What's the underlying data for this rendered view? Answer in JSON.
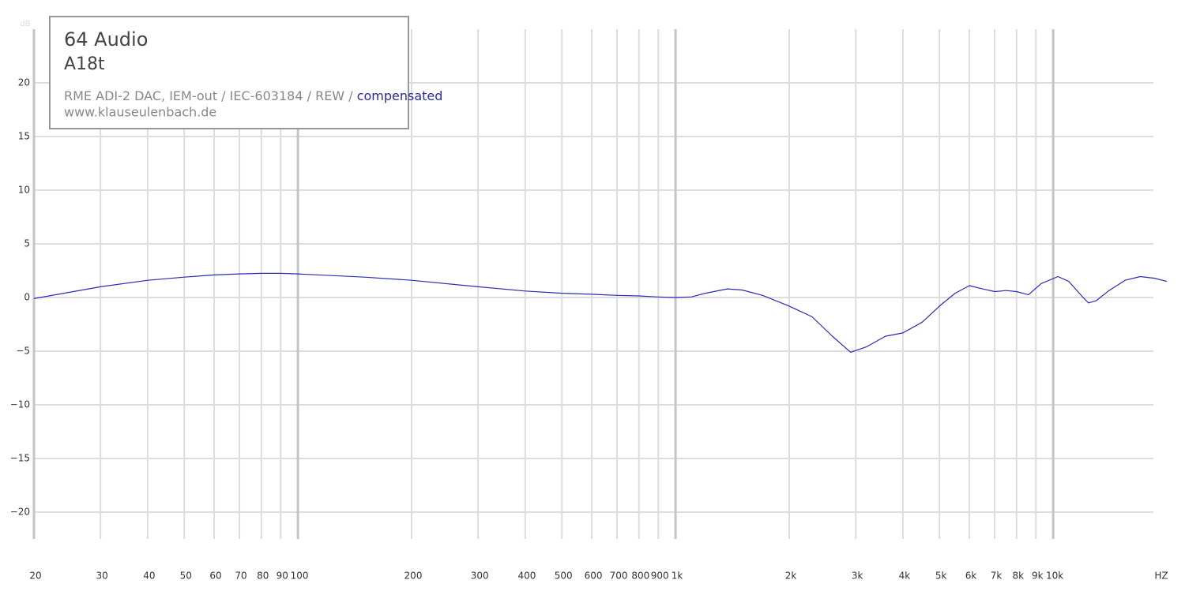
{
  "chart_data": {
    "type": "line",
    "title": "64 Audio",
    "subtitle": "A18t",
    "setup_note": "RME ADI-2 DAC, IEM-out / IEC-603184 / REW /",
    "compensation_note": "compensated",
    "source": "www.klauseulenbach.de",
    "y_label": "dB",
    "x_label": "HZ",
    "log_x": true,
    "grid": true,
    "color": "#2b2bb5",
    "xlim": [
      20,
      20000
    ],
    "ylim": [
      -22.5,
      25
    ],
    "yticks": [
      {
        "value": -20,
        "label": "−20"
      },
      {
        "value": -15,
        "label": "−15"
      },
      {
        "value": -10,
        "label": "−10"
      },
      {
        "value": -5,
        "label": "−5"
      },
      0,
      5,
      10,
      15,
      20
    ],
    "xticks": [
      20,
      30,
      40,
      50,
      60,
      70,
      80,
      90,
      100,
      200,
      300,
      400,
      500,
      600,
      700,
      800,
      900,
      {
        "value": 1000,
        "label": "1k"
      },
      {
        "value": 2000,
        "label": "2k"
      },
      {
        "value": 3000,
        "label": "3k"
      },
      {
        "value": 4000,
        "label": "4k"
      },
      {
        "value": 5000,
        "label": "5k"
      },
      {
        "value": 6000,
        "label": "6k"
      },
      {
        "value": 7000,
        "label": "7k"
      },
      {
        "value": 8000,
        "label": "8k"
      },
      {
        "value": 9000,
        "label": "9k"
      },
      {
        "value": 10000,
        "label": "10k"
      }
    ],
    "x": [
      20,
      30,
      40,
      50,
      60,
      70,
      80,
      90,
      100,
      150,
      200,
      300,
      400,
      500,
      600,
      700,
      800,
      900,
      1000,
      1100,
      1200,
      1370,
      1500,
      1700,
      2000,
      2300,
      2600,
      2910,
      3200,
      3600,
      4000,
      4500,
      5000,
      5500,
      6000,
      6500,
      7000,
      7500,
      8000,
      8600,
      9300,
      10300,
      11000,
      12000,
      12400,
      13000,
      14000,
      15500,
      17000,
      18500,
      20000
    ],
    "values": [
      -0.1,
      1.0,
      1.6,
      1.9,
      2.1,
      2.2,
      2.25,
      2.25,
      2.2,
      1.9,
      1.6,
      1.0,
      0.6,
      0.4,
      0.3,
      0.2,
      0.15,
      0.05,
      0.0,
      0.05,
      0.4,
      0.8,
      0.7,
      0.2,
      -0.8,
      -1.8,
      -3.6,
      -5.1,
      -4.6,
      -3.6,
      -3.3,
      -2.3,
      -0.8,
      0.4,
      1.1,
      0.8,
      0.55,
      0.65,
      0.55,
      0.25,
      1.3,
      1.95,
      1.5,
      0.0,
      -0.5,
      -0.3,
      0.6,
      1.6,
      1.95,
      1.8,
      1.5
    ]
  }
}
